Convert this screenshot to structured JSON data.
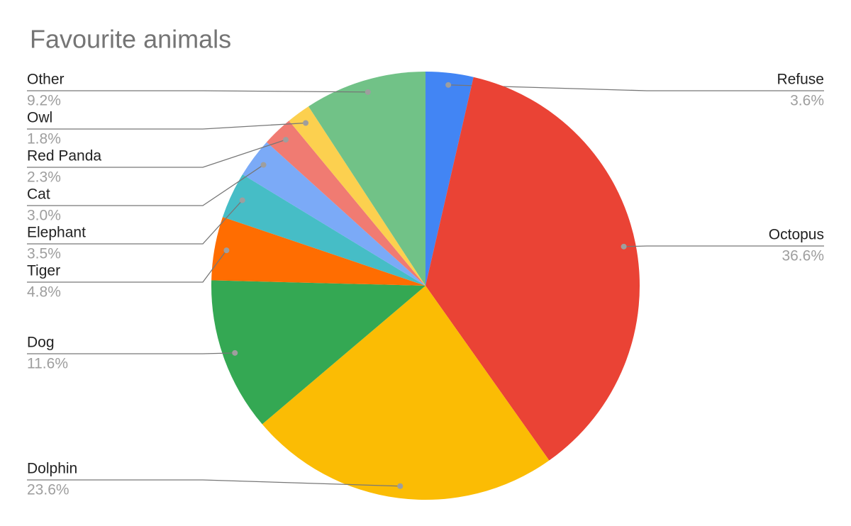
{
  "chart_data": {
    "type": "pie",
    "title": "Favourite animals",
    "categories": [
      "Refuse",
      "Octopus",
      "Dolphin",
      "Dog",
      "Tiger",
      "Elephant",
      "Cat",
      "Red Panda",
      "Owl",
      "Other"
    ],
    "values": [
      3.6,
      36.6,
      23.6,
      11.6,
      4.8,
      3.5,
      3.0,
      2.3,
      1.8,
      9.2
    ],
    "value_labels": [
      "3.6%",
      "36.6%",
      "23.6%",
      "11.6%",
      "4.8%",
      "3.5%",
      "3.0%",
      "2.3%",
      "1.8%",
      "9.2%"
    ],
    "colors": [
      "#4285f4",
      "#ea4335",
      "#fbbc04",
      "#34a853",
      "#ff6d01",
      "#46bdc6",
      "#7baaf7",
      "#f07b72",
      "#fcd04f",
      "#71c287"
    ]
  }
}
